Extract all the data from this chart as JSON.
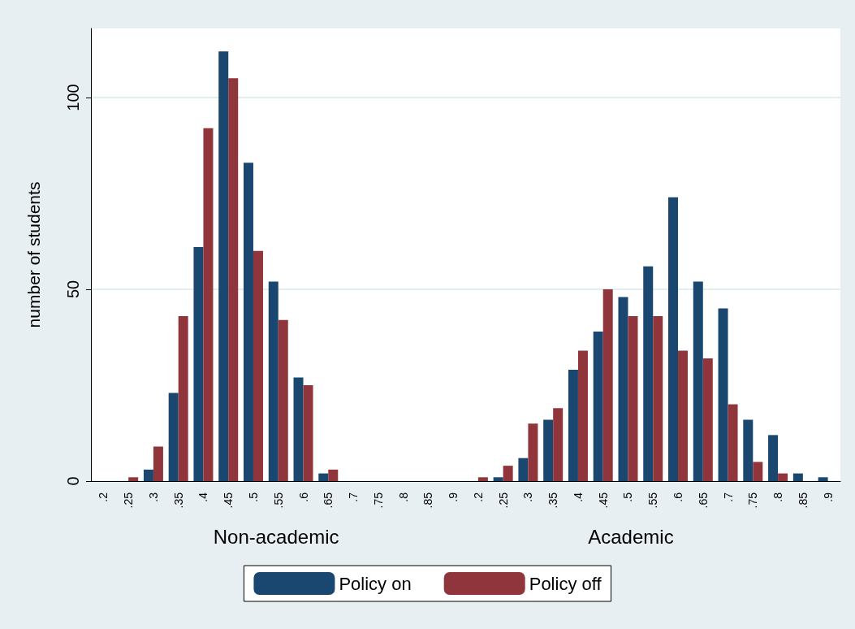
{
  "chart_data": {
    "type": "bar",
    "ylabel": "number of students",
    "categories": [
      ".2",
      ".25",
      ".3",
      ".35",
      ".4",
      ".45",
      ".5",
      ".55",
      ".6",
      ".65",
      ".7",
      ".75",
      ".8",
      ".85",
      ".9",
      ".2",
      ".25",
      ".3",
      ".35",
      ".4",
      ".45",
      ".5",
      ".55",
      ".6",
      ".65",
      ".7",
      ".75",
      ".8",
      ".85",
      ".9"
    ],
    "series": [
      {
        "name": "Policy on",
        "color": "#1a476f",
        "values": [
          0,
          0,
          3,
          23,
          61,
          112,
          83,
          52,
          27,
          2,
          0,
          0,
          0,
          0,
          0,
          0,
          1,
          6,
          16,
          29,
          39,
          48,
          56,
          74,
          52,
          45,
          16,
          12,
          2,
          1
        ]
      },
      {
        "name": "Policy off",
        "color": "#90353b",
        "values": [
          0,
          1,
          9,
          43,
          92,
          105,
          60,
          42,
          25,
          3,
          0,
          0,
          0,
          0,
          0,
          1,
          4,
          15,
          19,
          34,
          50,
          43,
          43,
          34,
          32,
          20,
          5,
          2,
          0,
          0
        ]
      }
    ],
    "annotations": [
      "Non-academic",
      "Academic"
    ],
    "ylim": [
      0,
      118
    ],
    "yticks": [
      0,
      50,
      100
    ],
    "grid": "y",
    "legend": "bottom"
  }
}
